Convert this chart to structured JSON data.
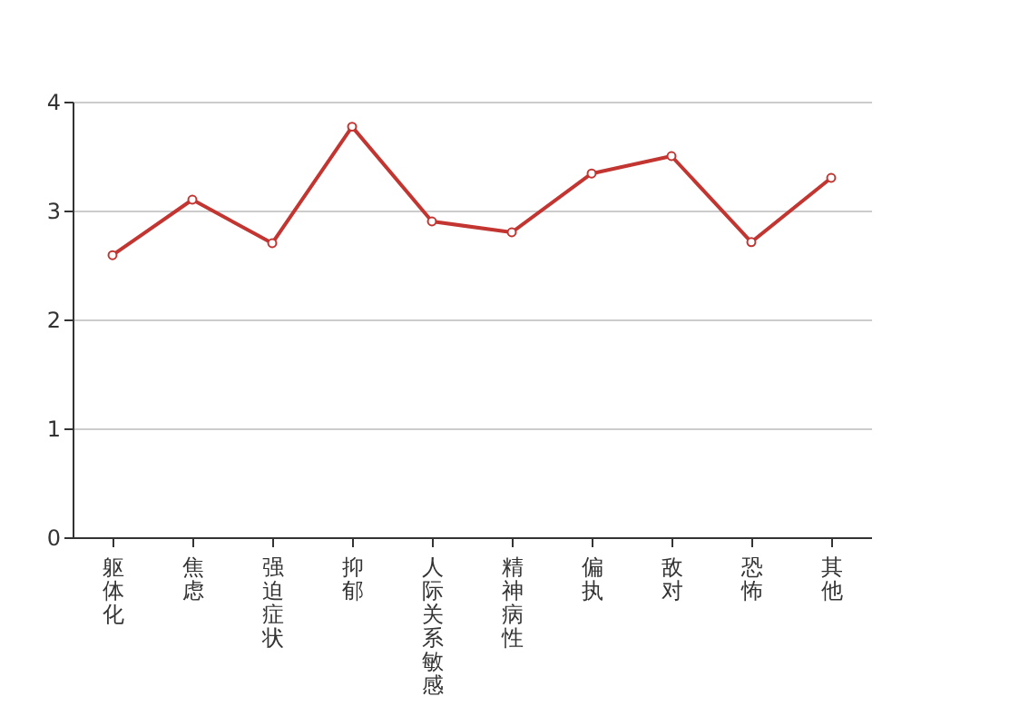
{
  "chart_data": {
    "type": "line",
    "categories": [
      "躯体化",
      "焦虑",
      "强迫症状",
      "抑郁",
      "人际关系敏感",
      "精神病性",
      "偏执",
      "敌对",
      "恐怖",
      "其他"
    ],
    "series": [
      {
        "color": "#c23531",
        "values": [
          2.59,
          3.1,
          2.7,
          3.77,
          2.9,
          2.8,
          3.34,
          3.5,
          2.71,
          3.3
        ]
      }
    ],
    "ylim": [
      0,
      4
    ],
    "yticks": [
      0,
      1,
      2,
      3,
      4
    ],
    "grid": "y",
    "marker": "circle",
    "line_style": "solid"
  }
}
